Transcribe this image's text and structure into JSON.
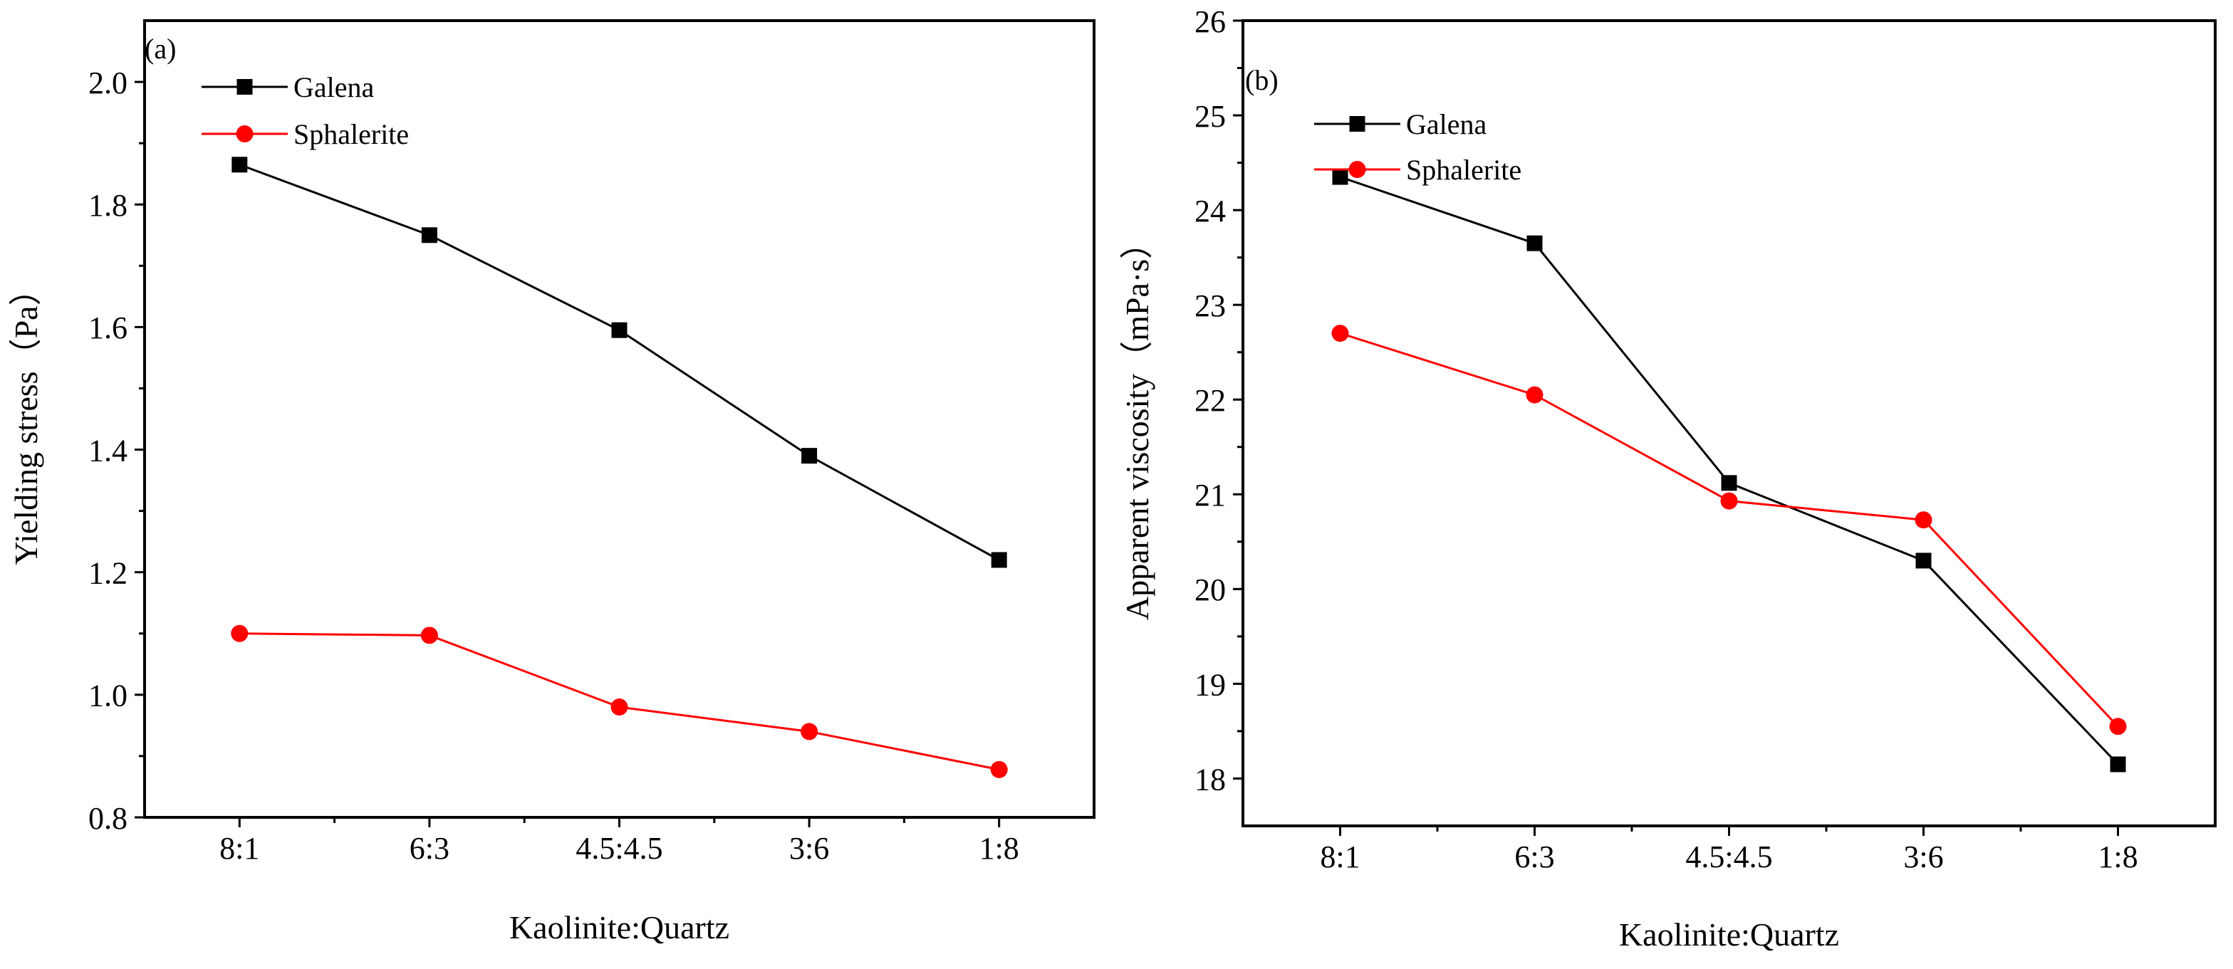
{
  "chart_data": [
    {
      "type": "line",
      "panel_label": "(a)",
      "categories": [
        "8:1",
        "6:3",
        "4.5:4.5",
        "3:6",
        "1:8"
      ],
      "xlabel": "Kaolinite:Quartz",
      "ylabel": "Yielding stress（Pa）",
      "ylim": [
        0.8,
        2.1
      ],
      "yticks": [
        0.8,
        1.0,
        1.2,
        1.4,
        1.6,
        1.8,
        2.0
      ],
      "ytick_labels": [
        "0.8",
        "1.0",
        "1.2",
        "1.4",
        "1.6",
        "1.8",
        "2.0"
      ],
      "legend_position": "top-left",
      "series": [
        {
          "name": "Galena",
          "color": "#000000",
          "marker": "square",
          "values": [
            1.865,
            1.75,
            1.595,
            1.39,
            1.22
          ]
        },
        {
          "name": "Sphalerite",
          "color": "#ff0000",
          "marker": "circle",
          "values": [
            1.1,
            1.097,
            0.98,
            0.94,
            0.878
          ]
        }
      ]
    },
    {
      "type": "line",
      "panel_label": "(b)",
      "categories": [
        "8:1",
        "6:3",
        "4.5:4.5",
        "3:6",
        "1:8"
      ],
      "xlabel": "Kaolinite:Quartz",
      "ylabel": "Apparent viscosity（mPa·s）",
      "ylim": [
        17.5,
        26
      ],
      "yticks": [
        18,
        19,
        20,
        21,
        22,
        23,
        24,
        25,
        26
      ],
      "ytick_labels": [
        "18",
        "19",
        "20",
        "21",
        "22",
        "23",
        "24",
        "25",
        "26"
      ],
      "legend_position": "top-left",
      "series": [
        {
          "name": "Galena",
          "color": "#000000",
          "marker": "square",
          "values": [
            24.35,
            23.65,
            21.12,
            20.3,
            18.15
          ]
        },
        {
          "name": "Sphalerite",
          "color": "#ff0000",
          "marker": "circle",
          "values": [
            22.7,
            22.05,
            20.93,
            20.73,
            18.55
          ]
        }
      ]
    }
  ]
}
